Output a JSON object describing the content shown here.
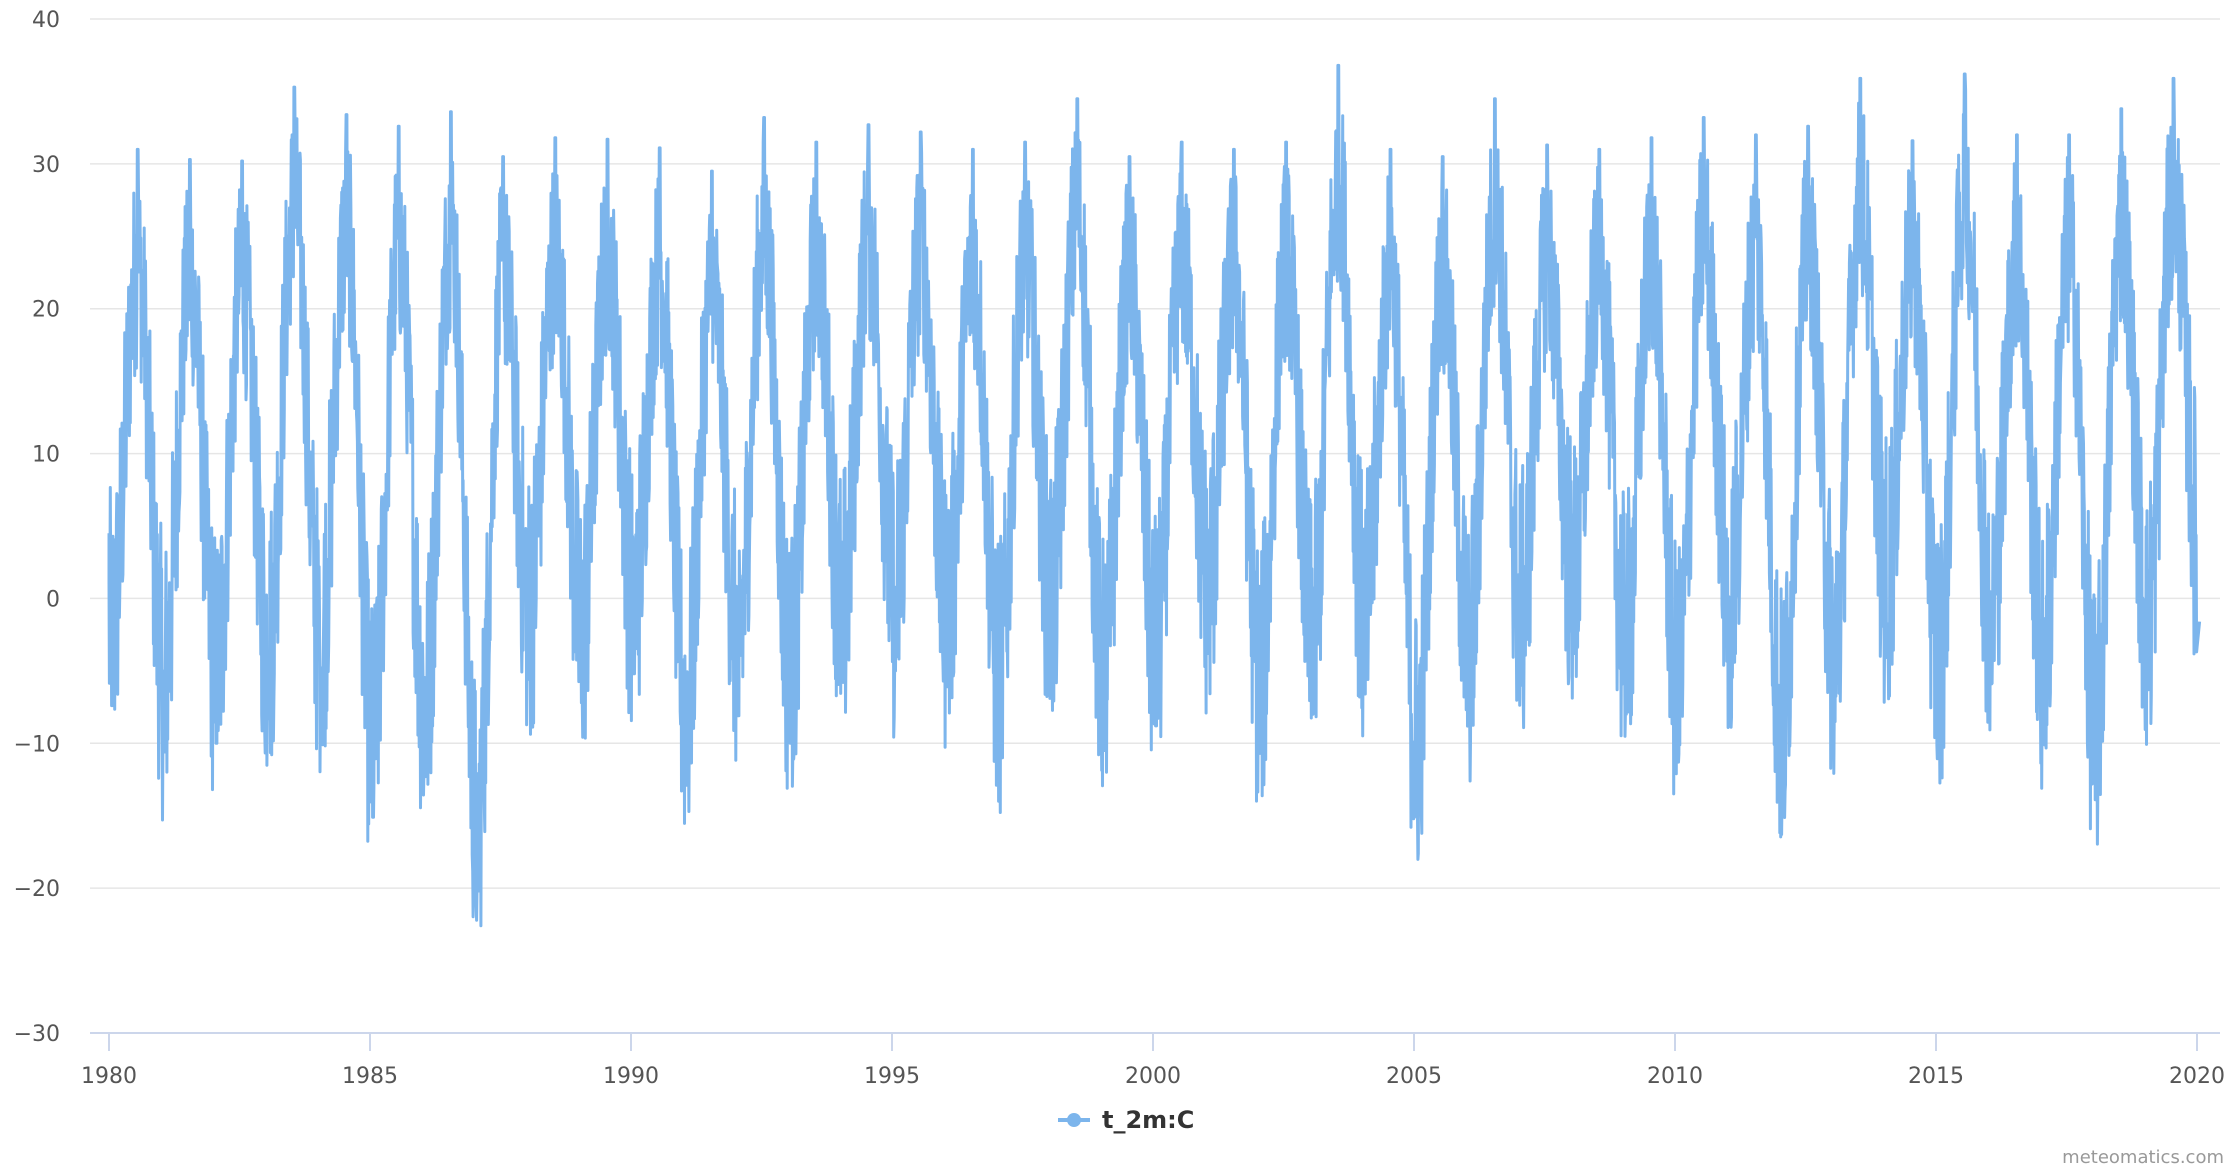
{
  "colors": {
    "series": "#7cb5ec",
    "grid": "#e6e6e6",
    "x_axis_line": "#ccd6eb",
    "tick_text": "#555555",
    "legend_text": "#333333",
    "credits_text": "#999999"
  },
  "legend": {
    "label": "t_2m:C",
    "icon": "line-with-circle-marker-icon"
  },
  "credits": {
    "text": "meteomatics.com"
  },
  "chart_data": {
    "type": "line",
    "title": "",
    "subtitle": "",
    "xlabel": "",
    "ylabel": "",
    "ylim": [
      -30,
      40
    ],
    "xlim": [
      1980,
      2020.05
    ],
    "y_ticks": [
      40,
      30,
      20,
      10,
      0,
      -10,
      -20,
      -30
    ],
    "y_tick_labels": [
      "40",
      "30",
      "20",
      "10",
      "0",
      "−10",
      "−20",
      "−30"
    ],
    "x_ticks": [
      1980,
      1985,
      1990,
      1995,
      2000,
      2005,
      2010,
      2015,
      2020
    ],
    "x_tick_labels": [
      "1980",
      "1985",
      "1990",
      "1995",
      "2000",
      "2005",
      "2010",
      "2015",
      "2020"
    ],
    "grid": {
      "horizontal": true,
      "vertical": false
    },
    "legend_position": "bottom-center",
    "series": [
      {
        "name": "t_2m:C",
        "unit": "°C",
        "color": "#7cb5ec",
        "description": "Daily 2 m air temperature time series, strong annual cycle (summer peaks ~28–37 °C, winter lows ~−5 to −20 °C)",
        "annual_summary": {
          "years": [
            1980,
            1981,
            1982,
            1983,
            1984,
            1985,
            1986,
            1987,
            1988,
            1989,
            1990,
            1991,
            1992,
            1993,
            1994,
            1995,
            1996,
            1997,
            1998,
            1999,
            2000,
            2001,
            2002,
            2003,
            2004,
            2005,
            2006,
            2007,
            2008,
            2009,
            2010,
            2011,
            2012,
            2013,
            2014,
            2015,
            2016,
            2017,
            2018,
            2019
          ],
          "summer_max": [
            31.0,
            30.3,
            30.2,
            35.3,
            33.4,
            32.6,
            33.6,
            30.5,
            31.8,
            31.7,
            31.1,
            29.5,
            33.2,
            31.5,
            32.7,
            32.2,
            31.0,
            31.5,
            34.5,
            30.5,
            31.5,
            31.0,
            31.5,
            36.8,
            31.0,
            30.5,
            34.5,
            31.3,
            31.0,
            31.8,
            33.2,
            32.0,
            32.6,
            35.9,
            31.6,
            36.2,
            32.0,
            32.0,
            33.8,
            35.9
          ],
          "winter_min": [
            -7.4,
            -10.6,
            -10.0,
            -8.3,
            -7.8,
            -15.1,
            -12.3,
            -20.2,
            -5.6,
            -7.2,
            -5.2,
            -12.9,
            -8.1,
            -10.0,
            -5.8,
            -5.0,
            -6.1,
            -10.5,
            -5.1,
            -10.5,
            -8.8,
            -3.8,
            -10.7,
            -8.0,
            -6.6,
            -15.1,
            -8.5,
            -6.0,
            -3.8,
            -8.0,
            -11.3,
            -5.0,
            -13.9,
            -8.5,
            -3.2,
            -9.0,
            -5.9,
            -9.0,
            -13.9,
            -6.3
          ]
        },
        "start_value": 4.5,
        "end_value": -1.6
      }
    ]
  }
}
